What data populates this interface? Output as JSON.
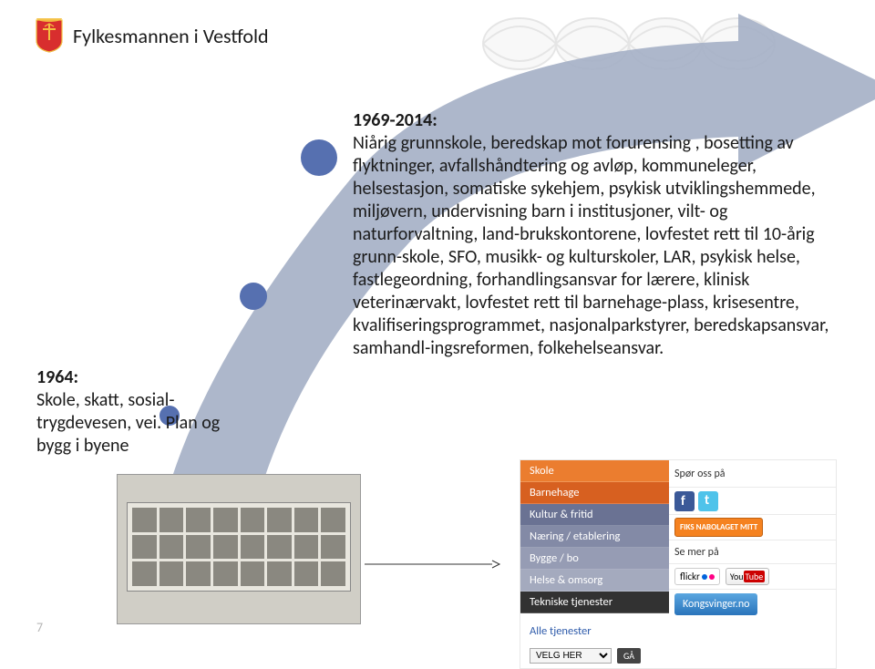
{
  "header": {
    "title": "Fylkesmannen i Vestfold"
  },
  "colors": {
    "arrow_fill": "#a6b1c7",
    "arrow_stroke": "#a6b1c7",
    "timeline_dot": "#5670b0",
    "watermark": "#c6c6c6"
  },
  "timeline": {
    "left_block": {
      "year": "1964:",
      "text": "Skole, skatt, sosial-trygdevesen, vei. Plan og bygg i byene"
    },
    "right_block": {
      "year": "1969-2014:",
      "lines": "Niårig grunnskole, beredskap mot forurensing , bosetting av flyktninger, avfallshåndtering og avløp, kommuneleger, helsestasjon, somatiske sykehjem, psykisk utviklingshemmede, miljøvern, undervisning barn i institusjoner, vilt- og naturforvaltning, land-brukskontorene, lovfestet rett til 10-årig grunn-skole, SFO, musikk- og kulturskoler, LAR, psykisk helse, fastlegeordning, forhandlingsansvar for lærere, klinisk veterinærvakt, lovfestet rett til barnehage-plass, krisesentre, kvalifiseringsprogrammet, nasjonalparkstyrer, beredskapsansvar, samhandl-ingsreformen, folkehelseansvar."
    }
  },
  "nav": {
    "items": [
      {
        "label": "Skole",
        "class": "school"
      },
      {
        "label": "Barnehage",
        "class": "barnehage"
      },
      {
        "label": "Kultur & fritid",
        "class": "kultur"
      },
      {
        "label": "Næring / etablering",
        "class": "naering"
      },
      {
        "label": "Bygge / bo",
        "class": "bygge"
      },
      {
        "label": "Helse & omsorg",
        "class": "helse"
      },
      {
        "label": "Tekniske tjenester",
        "class": "tekniske"
      }
    ],
    "all_label": "Alle tjenester",
    "select_placeholder": "VELG HER",
    "go_label": "GÅ",
    "right": {
      "ask": "Spør oss på",
      "fiks": "FIKS NABOLAGET MITT",
      "see_more": "Se mer på",
      "flickr": "flickr",
      "youtube_you": "You",
      "youtube_tube": "Tube",
      "kongsvinger": "Kongsvinger.no"
    }
  },
  "page_number": "7"
}
